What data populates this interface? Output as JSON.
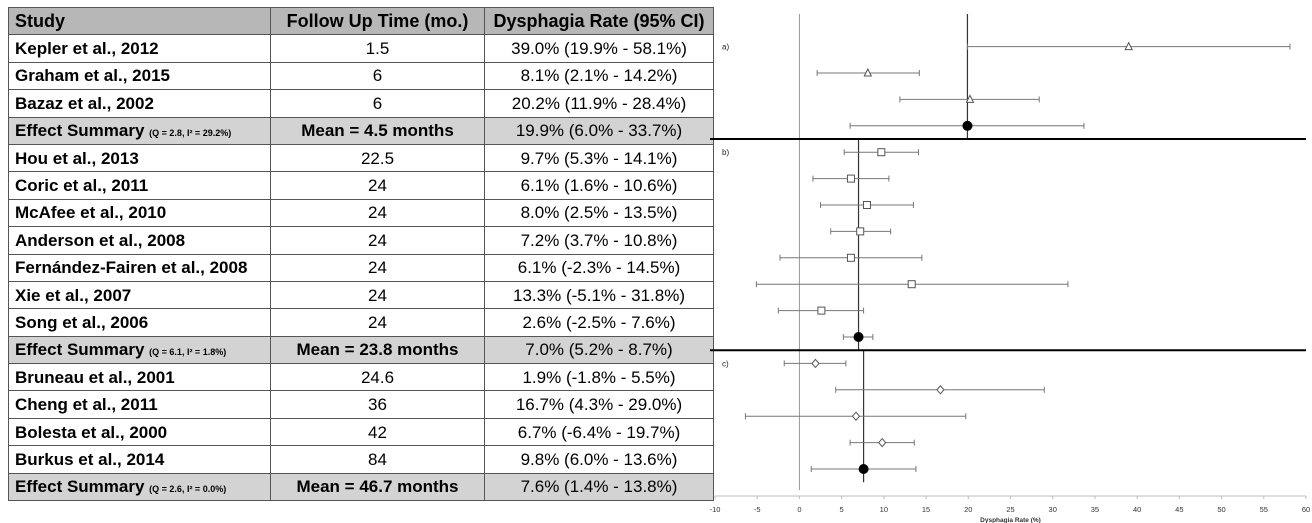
{
  "table": {
    "headers": {
      "study": "Study",
      "follow_up": "Follow Up Time (mo.)",
      "rate": "Dysphagia Rate (95% CI)"
    },
    "rows": [
      {
        "type": "study",
        "study": "Kepler et al., 2012",
        "follow_up": "1.5",
        "rate": "39.0% (19.9% - 58.1%)"
      },
      {
        "type": "study",
        "study": "Graham et al., 2015",
        "follow_up": "6",
        "rate": "8.1% (2.1% - 14.2%)"
      },
      {
        "type": "study",
        "study": "Bazaz et al., 2002",
        "follow_up": "6",
        "rate": "20.2% (11.9% - 28.4%)"
      },
      {
        "type": "summary",
        "study": "Effect Summary",
        "stat": "(Q = 2.8, I² = 29.2%)",
        "follow_up": "Mean = 4.5 months",
        "rate": "19.9% (6.0% - 33.7%)"
      },
      {
        "type": "study",
        "study": "Hou et al., 2013",
        "follow_up": "22.5",
        "rate": "9.7% (5.3% - 14.1%)"
      },
      {
        "type": "study",
        "study": "Coric et al., 2011",
        "follow_up": "24",
        "rate": "6.1% (1.6% - 10.6%)"
      },
      {
        "type": "study",
        "study": "McAfee et al., 2010",
        "follow_up": "24",
        "rate": "8.0% (2.5% - 13.5%)"
      },
      {
        "type": "study",
        "study": "Anderson et al., 2008",
        "follow_up": "24",
        "rate": "7.2% (3.7% - 10.8%)"
      },
      {
        "type": "study",
        "study": "Fernández-Fairen et al., 2008",
        "follow_up": "24",
        "rate": "6.1% (-2.3% - 14.5%)"
      },
      {
        "type": "study",
        "study": "Xie et al., 2007",
        "follow_up": "24",
        "rate": "13.3% (-5.1% - 31.8%)"
      },
      {
        "type": "study",
        "study": "Song et al., 2006",
        "follow_up": "24",
        "rate": "2.6% (-2.5% - 7.6%)"
      },
      {
        "type": "summary",
        "study": "Effect Summary",
        "stat": "(Q = 6.1, I² = 1.8%)",
        "follow_up": "Mean = 23.8 months",
        "rate": "7.0% (5.2% - 8.7%)"
      },
      {
        "type": "study",
        "study": "Bruneau et al., 2001",
        "follow_up": "24.6",
        "rate": "1.9% (-1.8% - 5.5%)"
      },
      {
        "type": "study",
        "study": "Cheng et al., 2011",
        "follow_up": "36",
        "rate": "16.7% (4.3% - 29.0%)"
      },
      {
        "type": "study",
        "study": "Bolesta et al., 2000",
        "follow_up": "42",
        "rate": "6.7% (-6.4% - 19.7%)"
      },
      {
        "type": "study",
        "study": "Burkus et al., 2014",
        "follow_up": "84",
        "rate": "9.8% (6.0% - 13.6%)"
      },
      {
        "type": "summary",
        "study": "Effect Summary",
        "stat": "(Q = 2.6, I² = 0.0%)",
        "follow_up": "Mean = 46.7 months",
        "rate": "7.6% (1.4% - 13.8%)"
      }
    ]
  },
  "chart_data": {
    "type": "scatter",
    "subtype": "forest-plot",
    "xlabel": "Dysphagia Rate (%)",
    "xlim": [
      -10,
      60
    ],
    "xticks": [
      -10,
      -5,
      0,
      5,
      10,
      15,
      20,
      25,
      30,
      35,
      40,
      45,
      50,
      55,
      60
    ],
    "groups": [
      {
        "label": "a)",
        "marker": "triangle",
        "summary_line": 19.9,
        "studies": [
          {
            "estimate": 39.0,
            "lower": 19.9,
            "upper": 58.1
          },
          {
            "estimate": 8.1,
            "lower": 2.1,
            "upper": 14.2
          },
          {
            "estimate": 20.2,
            "lower": 11.9,
            "upper": 28.4
          }
        ],
        "summary": {
          "estimate": 19.9,
          "lower": 6.0,
          "upper": 33.7
        }
      },
      {
        "label": "b)",
        "marker": "square",
        "summary_line": 7.0,
        "studies": [
          {
            "estimate": 9.7,
            "lower": 5.3,
            "upper": 14.1
          },
          {
            "estimate": 6.1,
            "lower": 1.6,
            "upper": 10.6
          },
          {
            "estimate": 8.0,
            "lower": 2.5,
            "upper": 13.5
          },
          {
            "estimate": 7.2,
            "lower": 3.7,
            "upper": 10.8
          },
          {
            "estimate": 6.1,
            "lower": -2.3,
            "upper": 14.5
          },
          {
            "estimate": 13.3,
            "lower": -5.1,
            "upper": 31.8
          },
          {
            "estimate": 2.6,
            "lower": -2.5,
            "upper": 7.6
          }
        ],
        "summary": {
          "estimate": 7.0,
          "lower": 5.2,
          "upper": 8.7
        }
      },
      {
        "label": "c)",
        "marker": "diamond",
        "summary_line": 7.6,
        "studies": [
          {
            "estimate": 1.9,
            "lower": -1.8,
            "upper": 5.5
          },
          {
            "estimate": 16.7,
            "lower": 4.3,
            "upper": 29.0
          },
          {
            "estimate": 6.7,
            "lower": -6.4,
            "upper": 19.7
          },
          {
            "estimate": 9.8,
            "lower": 6.0,
            "upper": 13.6
          }
        ],
        "summary": {
          "estimate": 7.6,
          "lower": 1.4,
          "upper": 13.8
        }
      }
    ],
    "colors": {
      "ci_line": "#777777",
      "summary_marker": "#000000",
      "divider": "#000000"
    }
  }
}
